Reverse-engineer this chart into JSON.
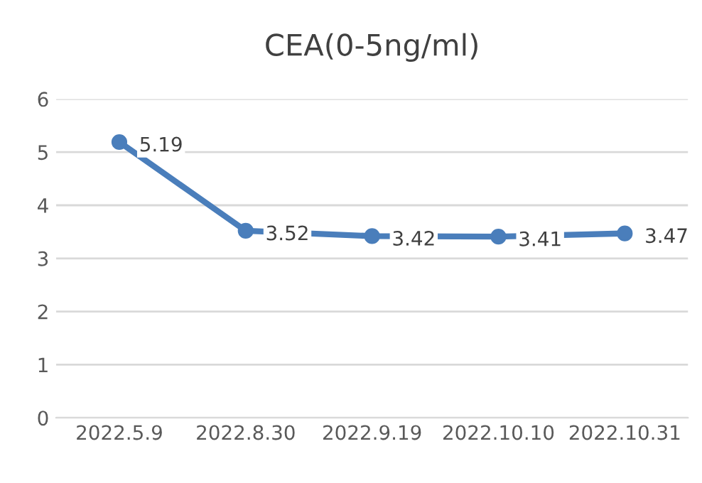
{
  "chart_data": {
    "type": "line",
    "title": "CEA(0-5ng/ml)",
    "categories": [
      "2022.5.9",
      "2022.8.30",
      "2022.9.19",
      "2022.10.10",
      "2022.10.31"
    ],
    "series": [
      {
        "color": "#4a7ebb",
        "values": [
          5.19,
          3.52,
          3.42,
          3.41,
          3.47
        ]
      }
    ],
    "ylim": [
      0,
      6
    ],
    "yticks": [
      0,
      1,
      2,
      3,
      4,
      5,
      6
    ],
    "grid": "y",
    "marker": "circle",
    "line_style": "solid",
    "data_labels": true,
    "legend": false
  }
}
